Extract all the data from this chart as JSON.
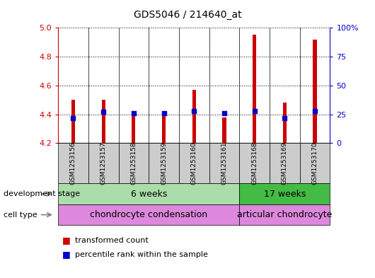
{
  "title": "GDS5046 / 214640_at",
  "samples": [
    "GSM1253156",
    "GSM1253157",
    "GSM1253158",
    "GSM1253159",
    "GSM1253160",
    "GSM1253161",
    "GSM1253168",
    "GSM1253169",
    "GSM1253170"
  ],
  "transformed_count": [
    4.5,
    4.5,
    4.41,
    4.41,
    4.57,
    4.38,
    4.95,
    4.48,
    4.92
  ],
  "percentile_rank": [
    22,
    27,
    26,
    26,
    28,
    26,
    28,
    22,
    28
  ],
  "ylim_left": [
    4.2,
    5.0
  ],
  "ylim_right": [
    0,
    100
  ],
  "yticks_left": [
    4.2,
    4.4,
    4.6,
    4.8,
    5.0
  ],
  "yticks_right": [
    0,
    25,
    50,
    75,
    100
  ],
  "ytick_right_labels": [
    "0",
    "25",
    "50",
    "75",
    "100%"
  ],
  "left_axis_color": "#cc0000",
  "right_axis_color": "#0000cc",
  "bar_color": "#cc0000",
  "dot_color": "#0000cc",
  "dot_size": 18,
  "bar_width": 0.12,
  "group_split": 6,
  "group1_label": "6 weeks",
  "group2_label": "17 weeks",
  "group1_color": "#aaddaa",
  "group2_color": "#44bb44",
  "cell1_label": "chondrocyte condensation",
  "cell2_label": "articular chondrocyte",
  "cell_color": "#dd88dd",
  "dev_stage_label": "development stage",
  "cell_type_label": "cell type",
  "legend_bar_label": "transformed count",
  "legend_dot_label": "percentile rank within the sample",
  "background_color": "#ffffff",
  "sample_box_color": "#cccccc",
  "title_fontsize": 10,
  "tick_fontsize": 8,
  "label_fontsize": 8,
  "panel_fontsize": 9
}
